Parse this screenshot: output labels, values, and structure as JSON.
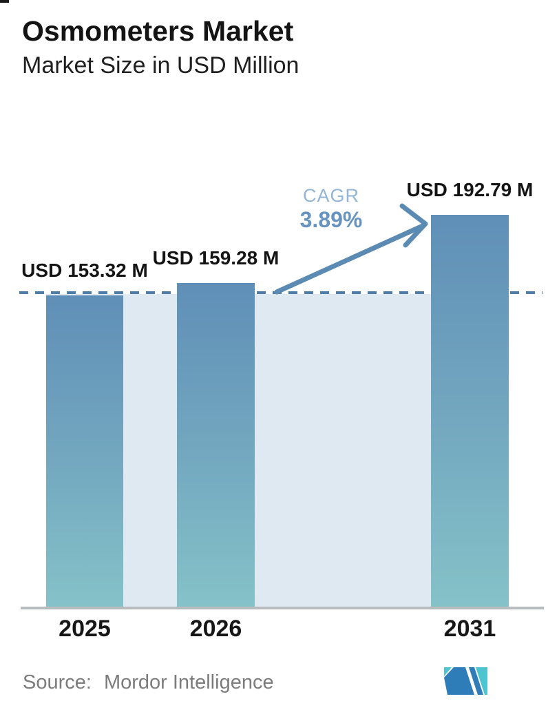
{
  "header": {
    "title": "Osmometers Market",
    "subtitle": "Market Size in USD Million"
  },
  "chart_data": {
    "type": "bar",
    "categories": [
      "2025",
      "2026",
      "2031"
    ],
    "values": [
      153.32,
      159.28,
      192.79
    ],
    "value_labels": [
      "USD 153.32 M",
      "USD 159.28 M",
      "USD 192.79 M"
    ],
    "title": "Osmometers Market",
    "subtitle": "Market Size in USD Million",
    "xlabel": "",
    "ylabel": "Market Size (USD Million)",
    "ylim": [
      0,
      200
    ],
    "grid": false,
    "legend": false,
    "annotations": {
      "cagr_label": "CAGR",
      "cagr_value": "3.89%",
      "reference_line_value": 153.32
    }
  },
  "footer": {
    "source_label": "Source:",
    "source_name": "Mordor Intelligence"
  },
  "icons": {
    "logo": "mordor-intelligence-logo",
    "arrow": "growth-arrow"
  },
  "colors": {
    "bar_top": "#5f8fb7",
    "bar_bottom": "#85c2c8",
    "plot_background": "#dfe9f1",
    "dashed_reference": "#4e7da7",
    "arrow": "#5b8bb3",
    "cagr_label": "#93b6d6",
    "cagr_value": "#6693bf",
    "axis_line": "#b9bcbe",
    "title_text": "#141414",
    "source_text": "#7c7c7c",
    "logo_blue": "#2e7cb8",
    "logo_teal": "#4ec4ce"
  }
}
